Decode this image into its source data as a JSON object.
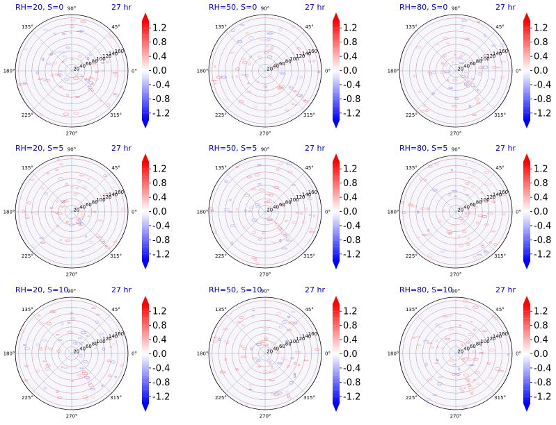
{
  "chart_data": {
    "type": "polar_contour_grid",
    "rows": 3,
    "cols": 3,
    "angle_ticks": [
      "90°",
      "45°",
      "0°",
      "315°",
      "270°",
      "225°",
      "180°",
      "135°"
    ],
    "radial_ticks": [
      "20",
      "40",
      "60",
      "80",
      "100",
      "120",
      "140",
      "160"
    ],
    "radial_range": [
      0,
      170
    ],
    "colorbar": {
      "colormap": "bwr",
      "vmin": -1.4,
      "vmax": 1.4,
      "extend": "both",
      "ticks": [
        "1.2",
        "0.8",
        "0.4",
        "0.0",
        "-0.4",
        "-0.8",
        "-1.2"
      ]
    },
    "panels": [
      {
        "rh_s": "RH=20, S=0",
        "time": "27 hr"
      },
      {
        "rh_s": "RH=50, S=0",
        "time": "27 hr"
      },
      {
        "rh_s": "RH=80, S=0",
        "time": "27 hr"
      },
      {
        "rh_s": "RH=20, S=5",
        "time": "27 hr"
      },
      {
        "rh_s": "RH=50, S=5",
        "time": "27 hr"
      },
      {
        "rh_s": "RH=80, S=5",
        "time": "27 hr"
      },
      {
        "rh_s": "RH=20, S=10",
        "time": "27 hr"
      },
      {
        "rh_s": "RH=50, S=10",
        "time": "27 hr"
      },
      {
        "rh_s": "RH=80, S=10",
        "time": "27 hr"
      }
    ],
    "colors": {
      "title": "#0000cc",
      "radial_grid": "#cc6666",
      "angle_grid": "#8899bb",
      "positive": "#ff2a2a",
      "negative": "#2a2aff"
    }
  }
}
